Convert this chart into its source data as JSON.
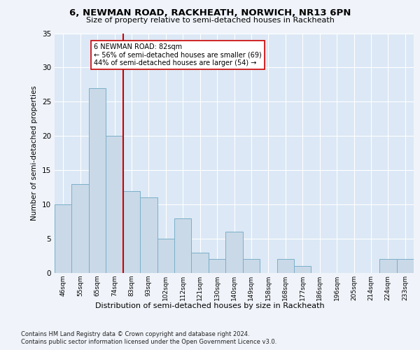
{
  "title1": "6, NEWMAN ROAD, RACKHEATH, NORWICH, NR13 6PN",
  "title2": "Size of property relative to semi-detached houses in Rackheath",
  "xlabel": "Distribution of semi-detached houses by size in Rackheath",
  "ylabel": "Number of semi-detached properties",
  "categories": [
    "46sqm",
    "55sqm",
    "65sqm",
    "74sqm",
    "83sqm",
    "93sqm",
    "102sqm",
    "112sqm",
    "121sqm",
    "130sqm",
    "140sqm",
    "149sqm",
    "158sqm",
    "168sqm",
    "177sqm",
    "186sqm",
    "196sqm",
    "205sqm",
    "214sqm",
    "224sqm",
    "233sqm"
  ],
  "values": [
    10,
    13,
    27,
    20,
    12,
    11,
    5,
    8,
    3,
    2,
    6,
    2,
    0,
    2,
    1,
    0,
    0,
    0,
    0,
    2,
    2
  ],
  "bar_color": "#c9d9e8",
  "bar_edge_color": "#7aafc8",
  "vline_color": "#cc0000",
  "annotation_text": "6 NEWMAN ROAD: 82sqm\n← 56% of semi-detached houses are smaller (69)\n44% of semi-detached houses are larger (54) →",
  "annotation_box_facecolor": "#ffffff",
  "annotation_box_edgecolor": "#cc0000",
  "ylim": [
    0,
    35
  ],
  "yticks": [
    0,
    5,
    10,
    15,
    20,
    25,
    30,
    35
  ],
  "fig_bg_color": "#f0f4fa",
  "plot_bg_color": "#dce8f5",
  "footer1": "Contains HM Land Registry data © Crown copyright and database right 2024.",
  "footer2": "Contains public sector information licensed under the Open Government Licence v3.0."
}
